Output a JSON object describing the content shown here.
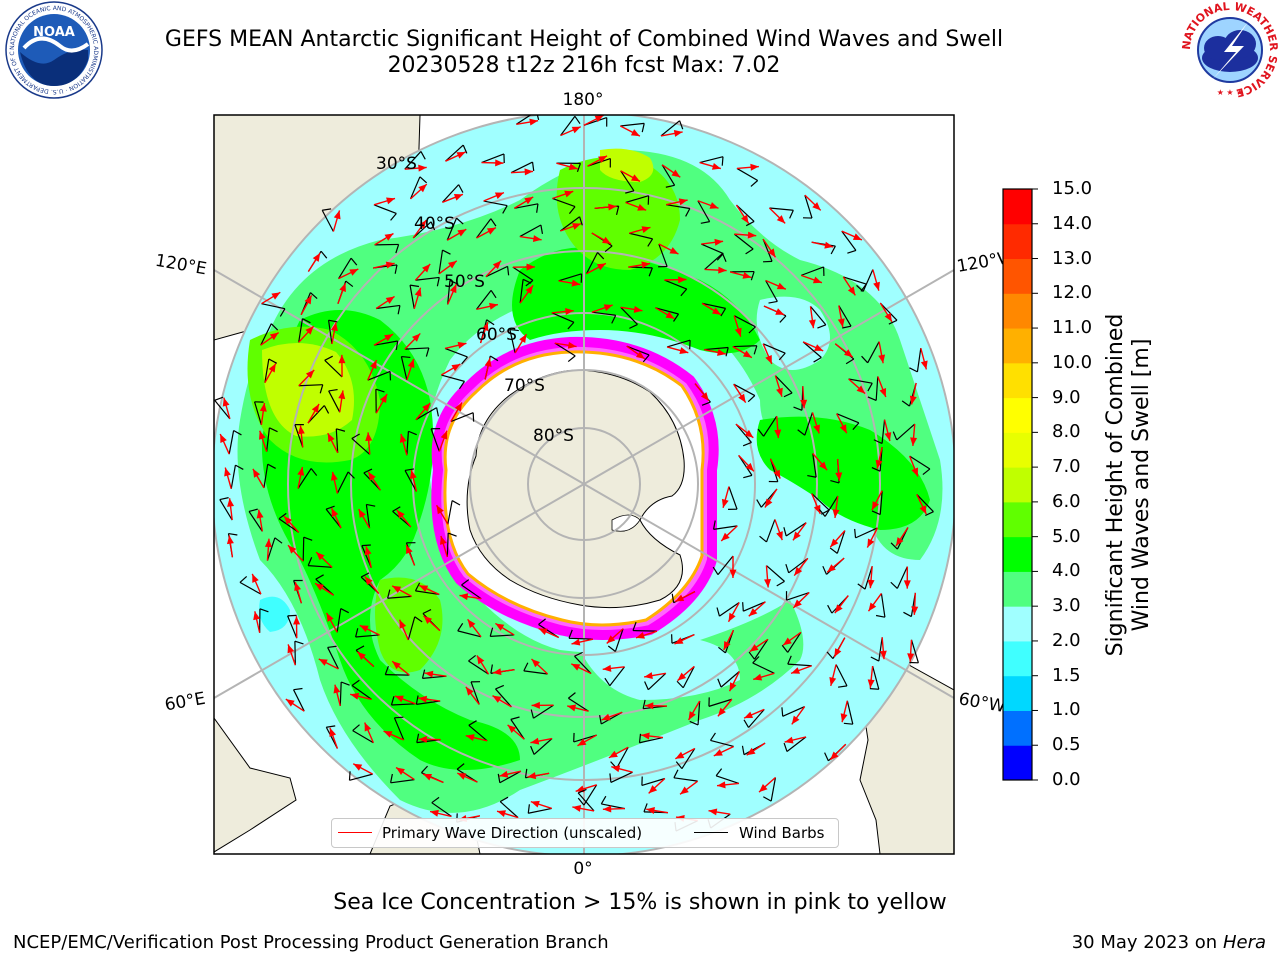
{
  "header": {
    "title_line1": "GEFS MEAN Antarctic Significant Height of Combined Wind Waves and Swell",
    "title_line2": "20230528 t12z 216h fcst   Max: 7.02",
    "noaa_logo_text": "NOAA",
    "noaa_ring_text": "NATIONAL OCEANIC AND ATMOSPHERIC ADMINISTRATION · U.S. DEPARTMENT OF COMMERCE",
    "nws_ring_text": "NATIONAL WEATHER SERVICE"
  },
  "map": {
    "projection": "south-polar-stereographic",
    "latitude_labels": [
      "30°S",
      "40°S",
      "50°S",
      "60°S",
      "70°S",
      "80°S"
    ],
    "longitude_labels": {
      "top": "180°",
      "bottom": "0°",
      "upper_left": "120°E",
      "lower_left": "60°E",
      "upper_right": "120°W",
      "lower_right": "60°W"
    }
  },
  "legend": {
    "wave_direction_label": "Primary Wave Direction (unscaled)",
    "wind_barbs_label": "Wind Barbs",
    "wave_color": "#ff0000",
    "barb_color": "#000000"
  },
  "colorbar": {
    "title_line1": "Significant Height of Combined",
    "title_line2": "Wind Waves and Swell [m]",
    "ticks": [
      "0.0",
      "0.5",
      "1.0",
      "1.5",
      "2.0",
      "3.0",
      "4.0",
      "5.0",
      "6.0",
      "7.0",
      "8.0",
      "9.0",
      "10.0",
      "11.0",
      "12.0",
      "13.0",
      "14.0",
      "15.0"
    ],
    "colors": [
      "#0000ff",
      "#0070ff",
      "#00d8ff",
      "#40ffff",
      "#a0ffff",
      "#50ff80",
      "#00ff00",
      "#60ff00",
      "#c0ff00",
      "#e8ff00",
      "#ffff00",
      "#ffe000",
      "#ffb000",
      "#ff8800",
      "#ff5500",
      "#ff2a00",
      "#ff0000"
    ]
  },
  "subtitle": "Sea Ice Concentration > 15% is shown in pink to yellow",
  "footer": {
    "left": "NCEP/EMC/Verification Post Processing Product Generation Branch",
    "right_date": "30 May 2023 on",
    "right_host": "Hera"
  }
}
